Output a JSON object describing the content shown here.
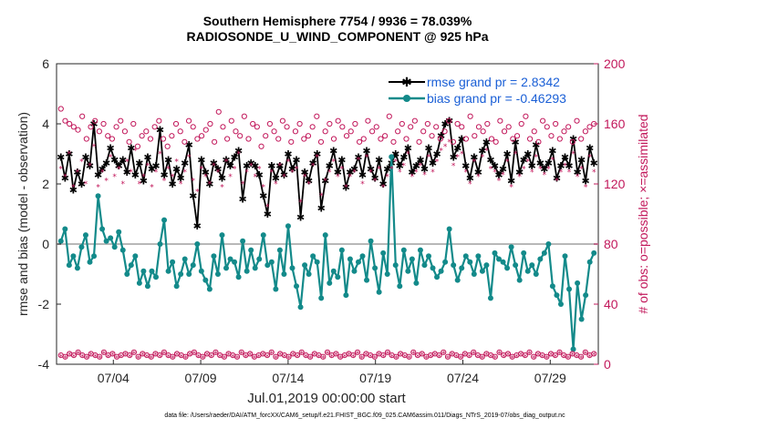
{
  "chart_data": {
    "type": "line",
    "title_line1": "Southern Hemisphere 7754 / 9936 = 78.039%",
    "title_line2": "RADIOSONDE_U_WIND_COMPONENT @ 925 hPa",
    "xlabel": "Jul.01,2019 00:00:00 start",
    "ylabel": "rmse and bias (model - observation)",
    "y2label": "# of obs: o=possible; ×=assimilated",
    "xlim": [
      0,
      124
    ],
    "ylim": [
      -4,
      6
    ],
    "y2lim": [
      0,
      200
    ],
    "xticks": [
      {
        "x": 13,
        "label": "07/04"
      },
      {
        "x": 33,
        "label": "07/09"
      },
      {
        "x": 53,
        "label": "07/14"
      },
      {
        "x": 73,
        "label": "07/19"
      },
      {
        "x": 93,
        "label": "07/24"
      },
      {
        "x": 113,
        "label": "07/29"
      }
    ],
    "yticks": [
      "-4",
      "-2",
      "0",
      "2",
      "4",
      "6"
    ],
    "y2ticks": [
      "0",
      "40",
      "80",
      "120",
      "160",
      "200"
    ],
    "footnote": "data file: /Users/raeder/DAI/ATM_forcXX/CAM6_setup/f.e21.FHIST_BGC.f09_025.CAM6assim.011/Diags_NTrS_2019-07/obs_diag_output.nc",
    "series": [
      {
        "name": "rmse",
        "legend": "rmse grand pr = 2.8342",
        "color": "#000000",
        "values": [
          2.9,
          2.2,
          3.0,
          1.8,
          2.4,
          2.0,
          2.9,
          2.6,
          4.0,
          2.3,
          2.5,
          2.7,
          3.2,
          2.8,
          2.6,
          2.8,
          2.4,
          3.2,
          2.3,
          2.7,
          2.1,
          2.9,
          2.5,
          2.6,
          3.8,
          2.3,
          2.8,
          2.0,
          2.5,
          2.2,
          2.7,
          3.3,
          1.6,
          0.6,
          2.8,
          2.4,
          2.0,
          2.7,
          2.5,
          2.2,
          2.8,
          2.6,
          2.9,
          3.1,
          1.5,
          2.6,
          2.7,
          2.6,
          2.3,
          1.6,
          1.0,
          2.6,
          2.2,
          2.6,
          2.3,
          3.0,
          2.5,
          2.8,
          0.9,
          2.4,
          2.1,
          2.7,
          3.0,
          1.2,
          2.1,
          2.6,
          3.1,
          2.4,
          2.8,
          1.9,
          2.4,
          2.5,
          2.9,
          2.3,
          3.1,
          2.5,
          2.2,
          2.8,
          2.0,
          2.5,
          2.7,
          3.0,
          2.6,
          2.9,
          3.2,
          2.4,
          2.6,
          2.8,
          2.5,
          3.2,
          2.7,
          3.0,
          3.6,
          4.0,
          4.1,
          2.9,
          3.2,
          3.5,
          2.6,
          2.2,
          2.9,
          2.4,
          3.1,
          3.4,
          2.8,
          2.6,
          2.3,
          2.5,
          3.0,
          2.1,
          3.4,
          2.4,
          2.8,
          3.0,
          2.6,
          3.3,
          2.7,
          2.5,
          2.7,
          3.1,
          2.2,
          2.6,
          2.9,
          2.6,
          3.5,
          2.4,
          2.8,
          2.1,
          3.2,
          2.7
        ],
        "show_every": 1
      },
      {
        "name": "bias",
        "legend": "bias grand pr = -0.46293",
        "color": "#138a8a",
        "values": [
          0.1,
          0.5,
          -0.7,
          -0.4,
          -0.8,
          -0.1,
          0.3,
          -0.6,
          -0.4,
          1.6,
          0.5,
          0.1,
          0.2,
          -0.1,
          0.4,
          -0.2,
          -1.0,
          -0.7,
          -0.4,
          -1.3,
          -0.9,
          -1.4,
          -0.9,
          -1.1,
          0.0,
          0.8,
          -0.9,
          -0.6,
          -1.4,
          -1.0,
          -0.5,
          -1.0,
          -0.7,
          0.0,
          -0.9,
          -1.2,
          -1.5,
          -0.4,
          -1.0,
          0.3,
          -0.8,
          -0.5,
          -0.6,
          -1.1,
          0.1,
          -0.9,
          -0.2,
          -0.8,
          -0.5,
          0.3,
          -0.7,
          -0.6,
          -1.5,
          -0.2,
          -1.0,
          0.6,
          -0.8,
          -1.4,
          -2.1,
          -0.7,
          -1.0,
          -0.4,
          -0.6,
          -1.8,
          0.3,
          -1.3,
          -0.9,
          -1.1,
          -0.2,
          -1.7,
          -0.5,
          -0.9,
          -0.6,
          -0.4,
          -1.2,
          0.1,
          -0.8,
          -1.6,
          -0.3,
          -1.0,
          2.9,
          -0.7,
          -1.4,
          -0.2,
          -0.9,
          -0.5,
          -1.3,
          -0.2,
          -0.7,
          -0.4,
          -0.8,
          -1.1,
          -0.9,
          -0.6,
          0.5,
          -0.7,
          -1.2,
          -0.8,
          -0.4,
          -0.6,
          -1.0,
          -0.4,
          -0.9,
          -0.7,
          -1.8,
          -0.3,
          -0.5,
          -0.6,
          -0.8,
          -0.1,
          -0.7,
          -1.2,
          -0.3,
          -0.9,
          -0.7,
          -1.0,
          -0.5,
          -0.3,
          0.0,
          -1.4,
          -1.7,
          -2.0,
          -0.4,
          -1.5,
          -3.5,
          -1.3,
          -2.5,
          -1.7,
          -0.6,
          -0.3
        ],
        "show_every": 1
      },
      {
        "name": "possible",
        "color": "#c2185b",
        "marker": "circle",
        "axis": "right",
        "values": [
          170,
          162,
          160,
          158,
          156,
          165,
          150,
          158,
          162,
          155,
          160,
          152,
          150,
          158,
          162,
          155,
          148,
          160,
          145,
          152,
          155,
          150,
          158,
          162,
          150,
          145,
          152,
          160,
          155,
          148,
          162,
          158,
          150,
          152,
          156,
          160,
          148,
          168,
          158,
          150,
          162,
          155,
          152,
          165,
          150,
          160,
          158,
          145,
          152,
          160,
          155,
          150,
          162,
          158,
          148,
          155,
          160,
          150,
          152,
          158,
          165,
          148,
          155,
          160,
          150,
          162,
          158,
          152,
          155,
          160,
          148,
          150,
          162,
          155,
          158,
          150,
          152,
          165,
          148,
          155,
          160,
          150,
          158,
          162,
          148,
          155,
          160,
          152,
          158,
          150,
          155,
          162,
          148,
          160,
          158,
          150,
          165,
          152,
          158,
          155,
          160,
          150,
          148,
          162,
          155,
          158,
          150,
          152,
          160,
          165,
          150,
          155,
          148,
          162,
          158,
          152,
          160,
          150,
          155,
          158,
          148,
          162,
          150,
          155,
          158,
          160
        ]
      },
      {
        "name": "assimilated",
        "color": "#c2185b",
        "marker": "asterisk",
        "axis": "right",
        "values": [
          130,
          125,
          140,
          118,
          128,
          135,
          120,
          132,
          145,
          118,
          128,
          122,
          138,
          125,
          130,
          120,
          135,
          128,
          142,
          120,
          125,
          132,
          118,
          128,
          140,
          122,
          130,
          125,
          135,
          120,
          128,
          138,
          122,
          115,
          130,
          125,
          120,
          132,
          128,
          118,
          135,
          125,
          130,
          140,
          120,
          128,
          132,
          125,
          130,
          118,
          105,
          128,
          120,
          132,
          125,
          135,
          128,
          130,
          108,
          125,
          120,
          132,
          138,
          112,
          122,
          128,
          135,
          125,
          130,
          118,
          125,
          128,
          136,
          120,
          138,
          128,
          122,
          130,
          118,
          125,
          130,
          135,
          128,
          132,
          140,
          125,
          128,
          132,
          126,
          138,
          128,
          135,
          142,
          145,
          148,
          132,
          138,
          140,
          128,
          120,
          135,
          125,
          138,
          142,
          130,
          128,
          122,
          126,
          135,
          118,
          140,
          125,
          130,
          135,
          128,
          138,
          130,
          126,
          130,
          136,
          122,
          128,
          132,
          128,
          140,
          125,
          130,
          118,
          138,
          128
        ]
      },
      {
        "name": "bottom_possible",
        "color": "#c2185b",
        "marker": "circle",
        "axis": "right",
        "values": [
          6,
          5,
          7,
          6,
          8,
          6,
          5,
          7,
          6,
          5,
          8,
          6,
          7,
          5,
          6,
          7,
          6,
          8,
          5,
          7,
          6,
          5,
          7,
          6,
          8,
          6,
          5,
          7,
          6,
          5,
          7,
          8,
          6,
          5,
          7,
          6,
          8,
          6,
          5,
          7,
          6,
          5,
          8,
          6,
          7,
          5,
          6,
          7,
          6,
          8,
          5,
          7,
          6,
          5,
          7,
          6,
          8,
          6,
          5,
          7,
          6,
          5,
          8,
          6,
          7,
          5,
          6,
          7,
          6,
          8,
          5,
          7,
          6,
          5,
          7,
          6,
          8,
          6,
          5,
          7,
          6,
          5,
          8,
          6,
          7,
          5,
          6,
          7,
          6,
          8,
          5,
          7,
          6,
          5,
          7,
          6,
          8,
          6,
          5,
          7,
          6,
          5,
          8,
          6,
          7,
          5,
          6,
          7,
          6,
          8,
          5,
          7,
          6,
          5,
          7,
          6,
          8,
          6,
          5,
          7,
          6,
          5,
          8,
          6,
          7
        ]
      },
      {
        "name": "bottom_assimilated",
        "color": "#c2185b",
        "marker": "asterisk",
        "axis": "right",
        "values": [
          5,
          4,
          6,
          5,
          7,
          5,
          4,
          6,
          5,
          4,
          7,
          5,
          6,
          4,
          5,
          6,
          5,
          7,
          4,
          6,
          5,
          4,
          6,
          5,
          7,
          5,
          4,
          6,
          5,
          4,
          6,
          7,
          5,
          4,
          6,
          5,
          7,
          5,
          4,
          6,
          5,
          4,
          7,
          5,
          6,
          4,
          5,
          6,
          5,
          7,
          4,
          6,
          5,
          4,
          6,
          5,
          7,
          5,
          4,
          6,
          5,
          4,
          7,
          5,
          6,
          4,
          5,
          6,
          5,
          7,
          4,
          6,
          5,
          4,
          6,
          5,
          7,
          5,
          4,
          6,
          5,
          4,
          7,
          5,
          6,
          4,
          5,
          6,
          5,
          7,
          4,
          6,
          5,
          4,
          6,
          5,
          7,
          5,
          4,
          6,
          5,
          4,
          7,
          5,
          6,
          4,
          5,
          6,
          5,
          7,
          4,
          6,
          5,
          4,
          6,
          5,
          7,
          5,
          4,
          6,
          5,
          4,
          7,
          5,
          6
        ]
      }
    ]
  }
}
